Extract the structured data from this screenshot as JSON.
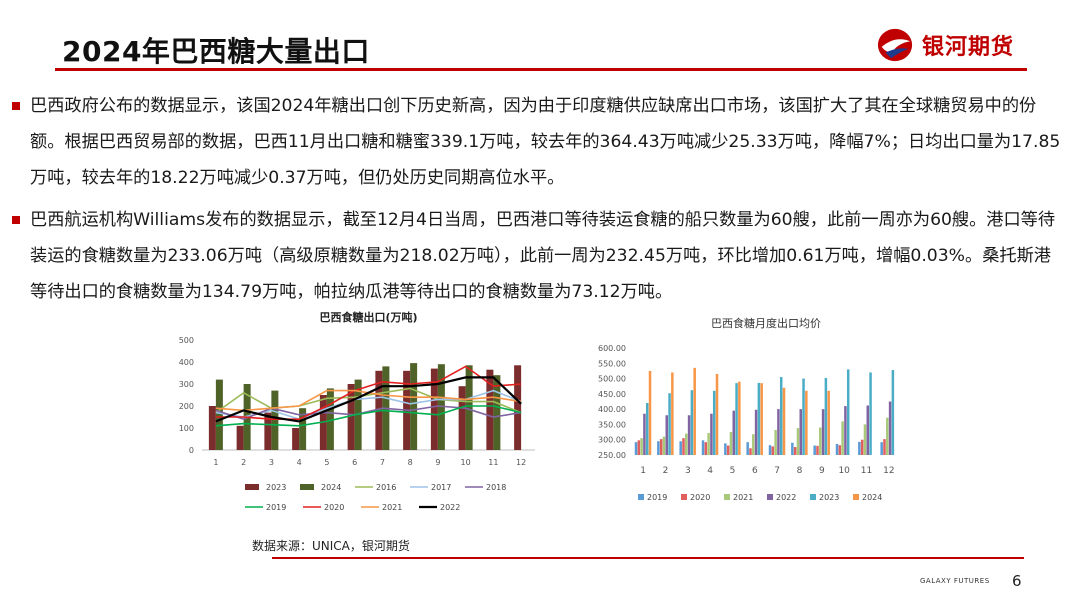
{
  "header": {
    "title": "2024年巴西糖大量出口",
    "logo_text": "银河期货",
    "accent_color": "#c00000"
  },
  "bullets": [
    "巴西政府公布的数据显示，该国2024年糖出口创下历史新高，因为由于印度糖供应缺席出口市场，该国扩大了其在全球糖贸易中的份额。根据巴西贸易部的数据，巴西11月出口糖和糖蜜339.1万吨，较去年的364.43万吨减少25.33万吨，降幅7%；日均出口量为17.85万吨，较去年的18.22万吨减少0.37万吨，但仍处历史同期高位水平。",
    "巴西航运机构Williams发布的数据显示，截至12月4日当周，巴西港口等待装运食糖的船只数量为60艘，此前一周亦为60艘。港口等待装运的食糖数量为233.06万吨（高级原糖数量为218.02万吨），此前一周为232.45万吨，环比增加0.61万吨，增幅0.03%。桑托斯港等待出口的食糖数量为134.79万吨，帕拉纳瓜港等待出口的食糖数量为73.12万吨。"
  ],
  "chart_data": [
    {
      "type": "bar+line",
      "title": "巴西食糖出口(万吨)",
      "categories": [
        "1",
        "2",
        "3",
        "4",
        "5",
        "6",
        "7",
        "8",
        "9",
        "10",
        "11",
        "12"
      ],
      "ylim": [
        0,
        500
      ],
      "yticks": [
        "0",
        "100",
        "200",
        "300",
        "400",
        "500"
      ],
      "bar_series": [
        {
          "name": "2023",
          "color": "#7b2c2c",
          "values": [
            200,
            110,
            170,
            100,
            250,
            300,
            360,
            360,
            370,
            290,
            365,
            385
          ]
        },
        {
          "name": "2024",
          "color": "#4f6228",
          "values": [
            320,
            300,
            270,
            190,
            280,
            320,
            380,
            395,
            390,
            385,
            340,
            null
          ]
        }
      ],
      "line_series": [
        {
          "name": "2016",
          "color": "#9bbb59",
          "values": [
            170,
            260,
            190,
            200,
            235,
            240,
            260,
            280,
            230,
            220,
            220,
            170
          ]
        },
        {
          "name": "2017",
          "color": "#9dc3e6",
          "values": [
            170,
            150,
            180,
            140,
            190,
            230,
            240,
            210,
            230,
            230,
            270,
            220
          ]
        },
        {
          "name": "2018",
          "color": "#8064a2",
          "values": [
            180,
            140,
            190,
            160,
            170,
            160,
            190,
            180,
            200,
            190,
            150,
            170
          ]
        },
        {
          "name": "2019",
          "color": "#00b050",
          "values": [
            110,
            120,
            115,
            110,
            130,
            160,
            180,
            170,
            160,
            200,
            200,
            170
          ]
        },
        {
          "name": "2020",
          "color": "#e32020",
          "values": [
            150,
            150,
            140,
            140,
            200,
            270,
            310,
            300,
            310,
            380,
            290,
            300
          ]
        },
        {
          "name": "2021",
          "color": "#f79646",
          "values": [
            190,
            180,
            190,
            200,
            270,
            270,
            250,
            240,
            240,
            230,
            240,
            220
          ]
        },
        {
          "name": "2022",
          "color": "#000000",
          "values": [
            130,
            180,
            150,
            130,
            180,
            230,
            290,
            290,
            300,
            330,
            330,
            210
          ]
        }
      ]
    },
    {
      "type": "bar",
      "title": "巴西食糖月度出口均价",
      "categories": [
        "1",
        "2",
        "3",
        "4",
        "5",
        "6",
        "7",
        "8",
        "9",
        "10",
        "11",
        "12"
      ],
      "ylim": [
        250,
        600
      ],
      "yticks": [
        "250.00",
        "300.00",
        "350.00",
        "400.00",
        "450.00",
        "500.00",
        "550.00",
        "600.00"
      ],
      "series": [
        {
          "name": "2019",
          "color": "#5b9bd5",
          "values": [
            292,
            295,
            295,
            298,
            288,
            292,
            282,
            290,
            281,
            286,
            293,
            292
          ]
        },
        {
          "name": "2020",
          "color": "#e06060",
          "values": [
            298,
            302,
            305,
            292,
            281,
            272,
            278,
            276,
            280,
            282,
            300,
            302
          ]
        },
        {
          "name": "2021",
          "color": "#a9c97a",
          "values": [
            305,
            310,
            320,
            322,
            325,
            318,
            332,
            338,
            340,
            360,
            350,
            372
          ]
        },
        {
          "name": "2022",
          "color": "#8064a2",
          "values": [
            385,
            380,
            380,
            385,
            395,
            398,
            400,
            400,
            400,
            410,
            412,
            425
          ]
        },
        {
          "name": "2023",
          "color": "#4bacc6",
          "values": [
            420,
            452,
            462,
            460,
            485,
            486,
            505,
            500,
            502,
            530,
            520,
            528
          ]
        },
        {
          "name": "2024",
          "color": "#f79646",
          "values": [
            525,
            520,
            535,
            515,
            490,
            485,
            470,
            460,
            460,
            null,
            null,
            null
          ]
        }
      ]
    }
  ],
  "source": "数据来源：UNICA，银河期货",
  "footer": {
    "brand": "GALAXY FUTURES",
    "page_number": "6"
  }
}
